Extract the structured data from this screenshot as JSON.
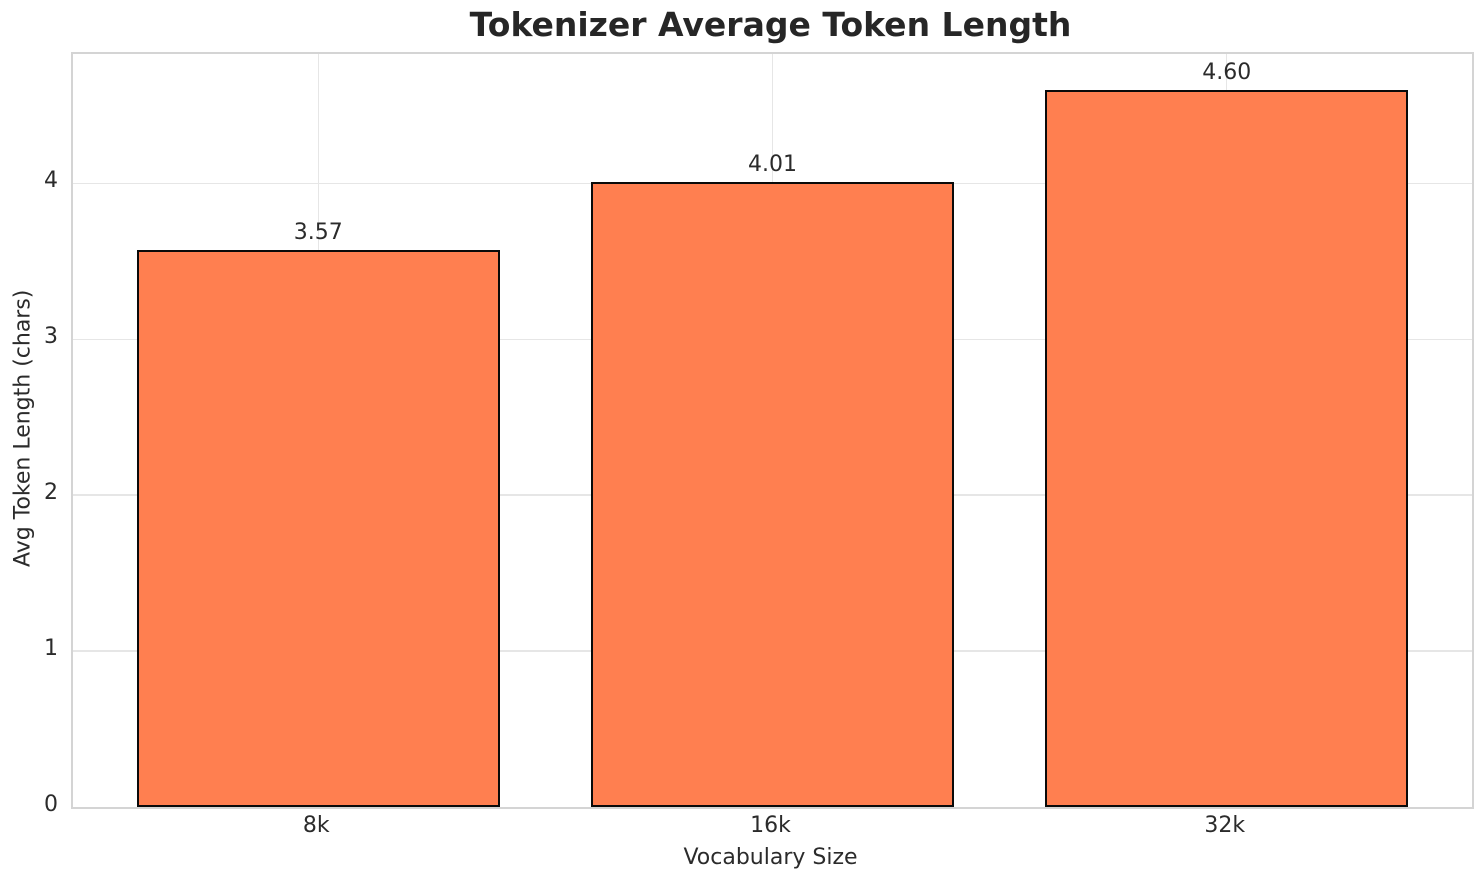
{
  "chart_data": {
    "type": "bar",
    "title": "Tokenizer Average Token Length",
    "xlabel": "Vocabulary Size",
    "ylabel": "Avg Token Length (chars)",
    "categories": [
      "8k",
      "16k",
      "32k"
    ],
    "values": [
      3.57,
      4.01,
      4.6
    ],
    "value_labels": [
      "3.57",
      "4.01",
      "4.60"
    ],
    "yticks": [
      0,
      1,
      2,
      3,
      4
    ],
    "ylim": [
      0,
      4.83
    ],
    "grid": true,
    "legend": null,
    "bar_color": "#FF7F50",
    "bar_edge_color": "#0a0a0a",
    "grid_color": "#e6e6e6",
    "spine_color": "#d4d4d4",
    "text_color": "#2b2b2b",
    "title_color": "#262626"
  }
}
